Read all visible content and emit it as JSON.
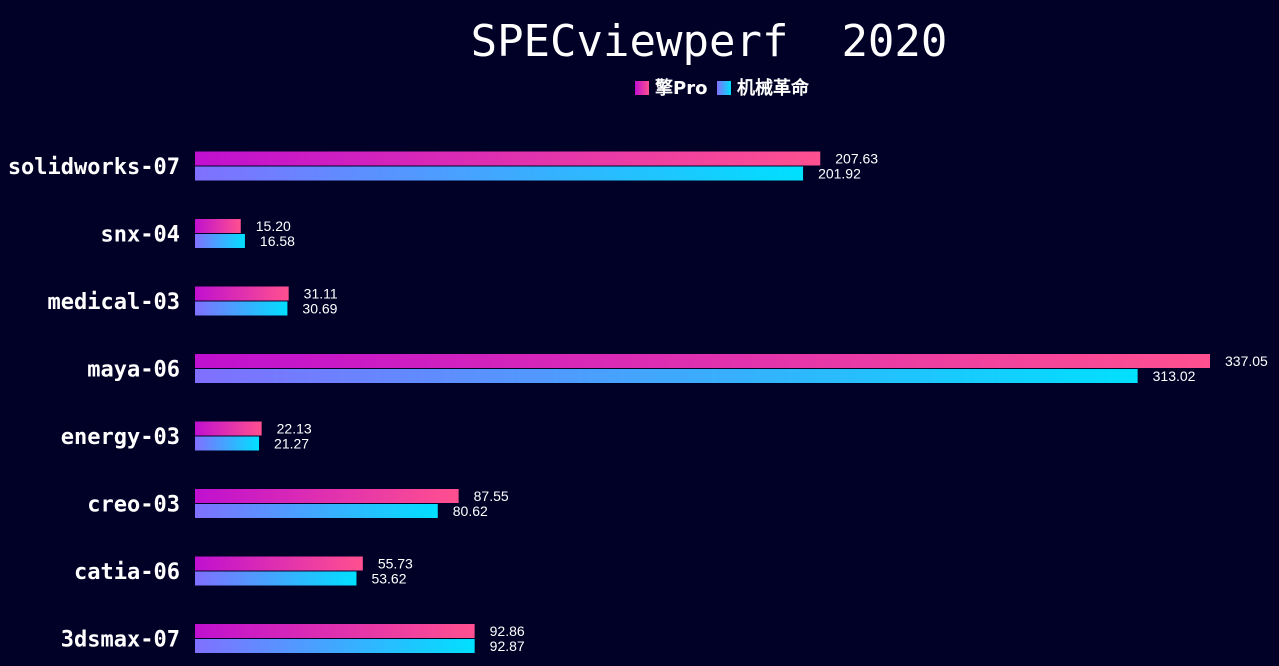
{
  "colors": {
    "background": "#010127",
    "series1_start": "#c010d0",
    "series1_end": "#ff5090",
    "series2_start": "#8070ff",
    "series2_end": "#00e0ff",
    "text": "#ffffff"
  },
  "chart_data": {
    "type": "bar",
    "orientation": "horizontal",
    "title": "SPECviewperf  2020",
    "xlabel": "",
    "ylabel": "",
    "grid": false,
    "legend_position": "top-center",
    "xlim": [
      0,
      337.05
    ],
    "categories": [
      "solidworks-07",
      "snx-04",
      "medical-03",
      "maya-06",
      "energy-03",
      "creo-03",
      "catia-06",
      "3dsmax-07"
    ],
    "series": [
      {
        "name": "擎Pro",
        "values": [
          207.63,
          15.2,
          31.11,
          337.05,
          22.13,
          87.55,
          55.73,
          92.86
        ],
        "labels": [
          "207.63",
          "15.20",
          "31.11",
          "337.05",
          "22.13",
          "87.55",
          "55.73",
          "92.86"
        ]
      },
      {
        "name": "机械革命",
        "values": [
          201.92,
          16.58,
          30.69,
          313.02,
          21.27,
          80.62,
          53.62,
          92.87
        ],
        "labels": [
          "201.92",
          "16.58",
          "30.69",
          "313.02",
          "21.27",
          "80.62",
          "53.62",
          "92.87"
        ]
      }
    ]
  }
}
